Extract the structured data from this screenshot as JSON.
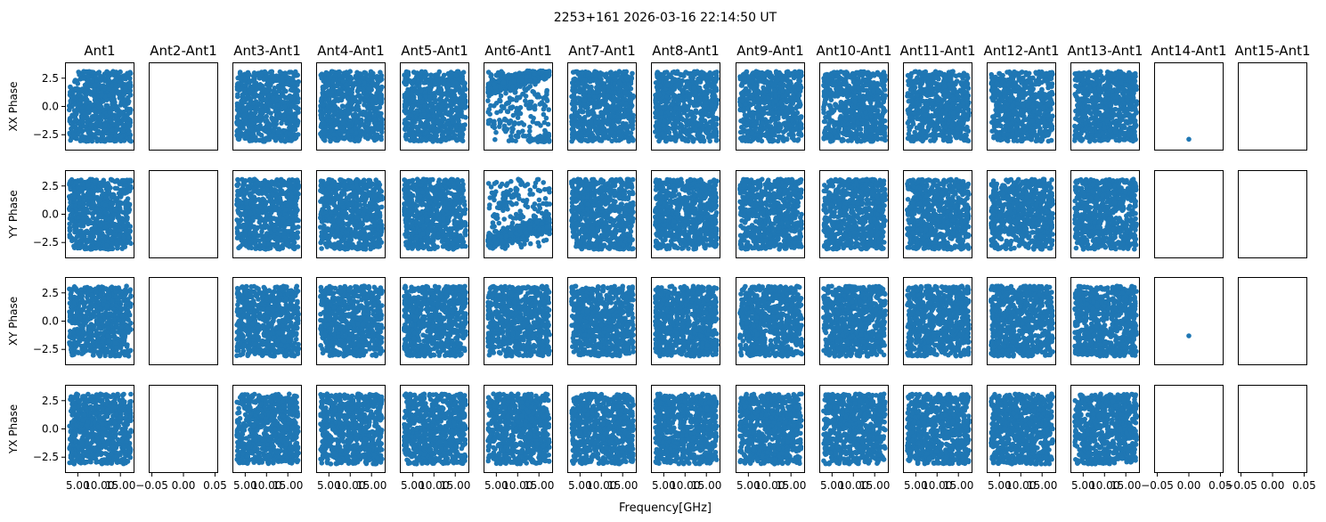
{
  "figure": {
    "suptitle": "2253+161 2026-03-16 22:14:50 UT",
    "xlabel": "Frequency[GHz]"
  },
  "chart_data": {
    "type": "scatter",
    "title": "2253+161 2026-03-16 22:14:50 UT",
    "xlabel": "Frequency[GHz]",
    "columns": [
      "Ant1",
      "Ant2-Ant1",
      "Ant3-Ant1",
      "Ant4-Ant1",
      "Ant5-Ant1",
      "Ant6-Ant1",
      "Ant7-Ant1",
      "Ant8-Ant1",
      "Ant9-Ant1",
      "Ant10-Ant1",
      "Ant11-Ant1",
      "Ant12-Ant1",
      "Ant13-Ant1",
      "Ant14-Ant1",
      "Ant15-Ant1"
    ],
    "rows": [
      "XX Phase",
      "YY Phase",
      "XY Phase",
      "YX Phase"
    ],
    "ylim": [
      -3.9,
      3.9
    ],
    "yticks": [
      2.5,
      0.0,
      -2.5
    ],
    "ytick_labels": [
      "2.5",
      "0.0",
      "−2.5"
    ],
    "marker_color": "#1f77b4",
    "freq_xlim": [
      2.0,
      18.3
    ],
    "freq_xticks": [
      5.0,
      10.0,
      15.0
    ],
    "freq_xtick_labels": [
      "5.00",
      "10.00",
      "15.00"
    ],
    "empty_xlim": [
      -0.055,
      0.055
    ],
    "empty_xticks": [
      -0.05,
      0.0,
      0.05
    ],
    "empty_xtick_labels": [
      "−0.05",
      "0.00",
      "0.05"
    ],
    "freq_range_ghz": [
      3.0,
      17.5
    ],
    "panel_kind": [
      "freq",
      "empty",
      "freq",
      "freq",
      "freq",
      "freq",
      "freq",
      "freq",
      "freq",
      "freq",
      "freq",
      "freq",
      "freq",
      "empty",
      "empty"
    ],
    "random_phase_points_per_panel": 700,
    "ant6_wrapped_phase": {
      "XX": {
        "start_phase": 1.5,
        "slope_rad_per_ghz": 0.12
      },
      "YY": {
        "start_phase": -2.5,
        "slope_rad_per_ghz": 0.12
      }
    },
    "single_points": [
      {
        "column": "Ant14-Ant1",
        "row": "XX Phase",
        "x": 0.0,
        "y": -2.9
      },
      {
        "column": "Ant14-Ant1",
        "row": "XY Phase",
        "x": 0.0,
        "y": -1.3
      }
    ]
  }
}
